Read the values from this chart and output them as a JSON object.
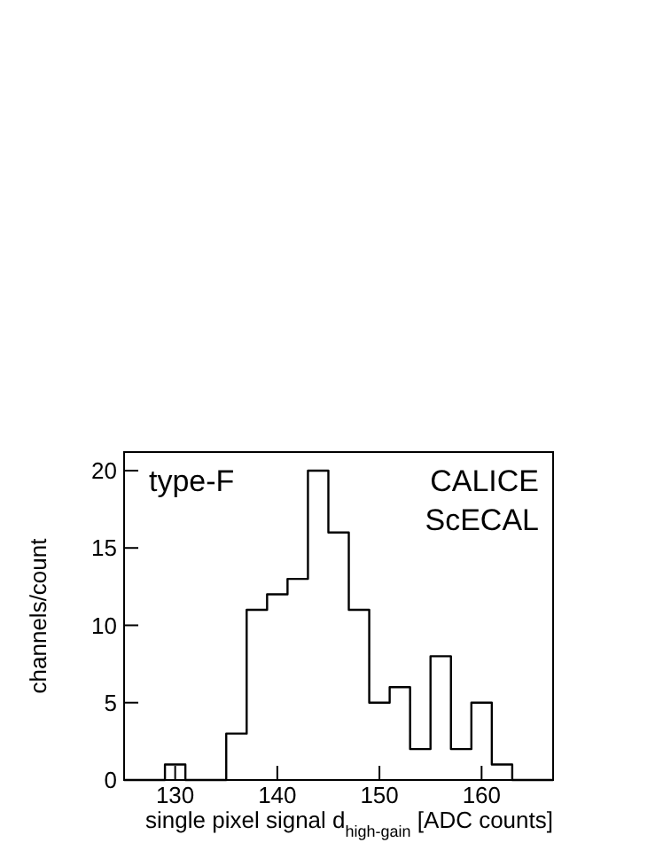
{
  "chart_data": {
    "type": "histogram",
    "xlabel": "single pixel signal d$_{high-gain}$ [ADC counts]",
    "ylabel": "channels/count",
    "bins": [
      125,
      127,
      129,
      131,
      133,
      135,
      137,
      139,
      141,
      143,
      145,
      147,
      149,
      151,
      153,
      155,
      157,
      159,
      161,
      163,
      165,
      167
    ],
    "values": [
      0,
      0,
      1,
      0,
      0,
      3,
      11,
      12,
      13,
      20,
      16,
      11,
      5,
      6,
      2,
      8,
      2,
      5,
      1,
      0,
      0
    ],
    "color": "#000000",
    "xlim": [
      125,
      167
    ],
    "xticks": [
      130,
      140,
      150,
      160
    ],
    "ylim": [
      0,
      21.2
    ],
    "yticks": [
      0,
      5,
      10,
      15,
      20
    ],
    "annotations": [
      "type-F",
      "CALICE",
      "ScECAL"
    ]
  }
}
